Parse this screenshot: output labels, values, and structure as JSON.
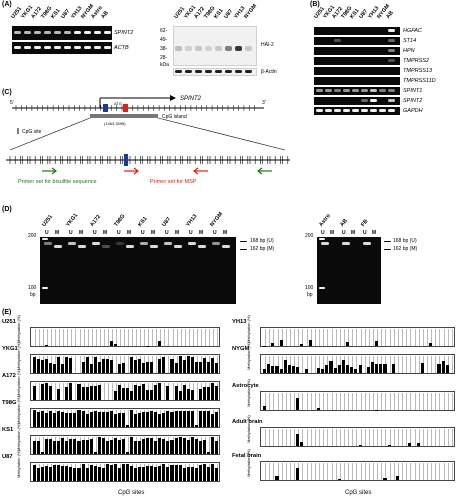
{
  "panels": {
    "A": "(A)",
    "B": "(B)",
    "C": "(C)",
    "D": "(D)",
    "E": "(E)"
  },
  "panelA": {
    "lanes": [
      "U251",
      "YKG1",
      "A172",
      "T98G",
      "KS1",
      "U87",
      "YH13",
      "NYGM",
      "Astro",
      "AB"
    ],
    "rows": [
      "SPINT2",
      "ACTB"
    ],
    "wb_lanes": [
      "U251",
      "YKG1",
      "A172",
      "T98G",
      "KS1",
      "U87",
      "YH13",
      "NYGM"
    ],
    "markers": [
      "62-",
      "49-",
      "38-",
      "28-",
      "kDa"
    ],
    "wb_rows": [
      "HAI-2",
      "β-Actin"
    ]
  },
  "panelB": {
    "lanes": [
      "U251",
      "YKG1",
      "A172",
      "T98G",
      "KS1",
      "U87",
      "YH13",
      "NYGM",
      "AB"
    ],
    "genes": [
      "HGFAC",
      "ST14",
      "HPN",
      "TMPRSS2",
      "TMPRSS13",
      "TMPRSS11D",
      "SPINT1",
      "SPINT2",
      "GAPDH"
    ]
  },
  "panelC": {
    "gene": "SPINT2",
    "atg": "ATG",
    "island": "CpG island",
    "coords": "(1463,3098)",
    "cpg_site": "CpG site",
    "bisulfite": "Primer set for bisulfite sequence",
    "msp": "Primer set for MSP",
    "end5": "5'",
    "end3": "3'"
  },
  "panelD": {
    "left_lanes": [
      "U251",
      "YKG1",
      "A172",
      "T98G",
      "KS1",
      "U87",
      "YH13",
      "NYGM"
    ],
    "right_lanes": [
      "Astro",
      "AB",
      "FB"
    ],
    "um": [
      "U",
      "M"
    ],
    "y200": "200",
    "y100": "100",
    "bp": "bp",
    "u_label": "168 bp (U)",
    "m_label": "162 bp (M)"
  },
  "panelE": {
    "left": [
      "U251",
      "YKG1",
      "A172",
      "T98G",
      "KS1",
      "U87"
    ],
    "right": [
      "YH13",
      "NYGM",
      "Astrocyte",
      "Adult brain",
      "Fetal brain"
    ],
    "xlabel": "CpG sites",
    "ylabel": "Methylation (%)"
  }
}
